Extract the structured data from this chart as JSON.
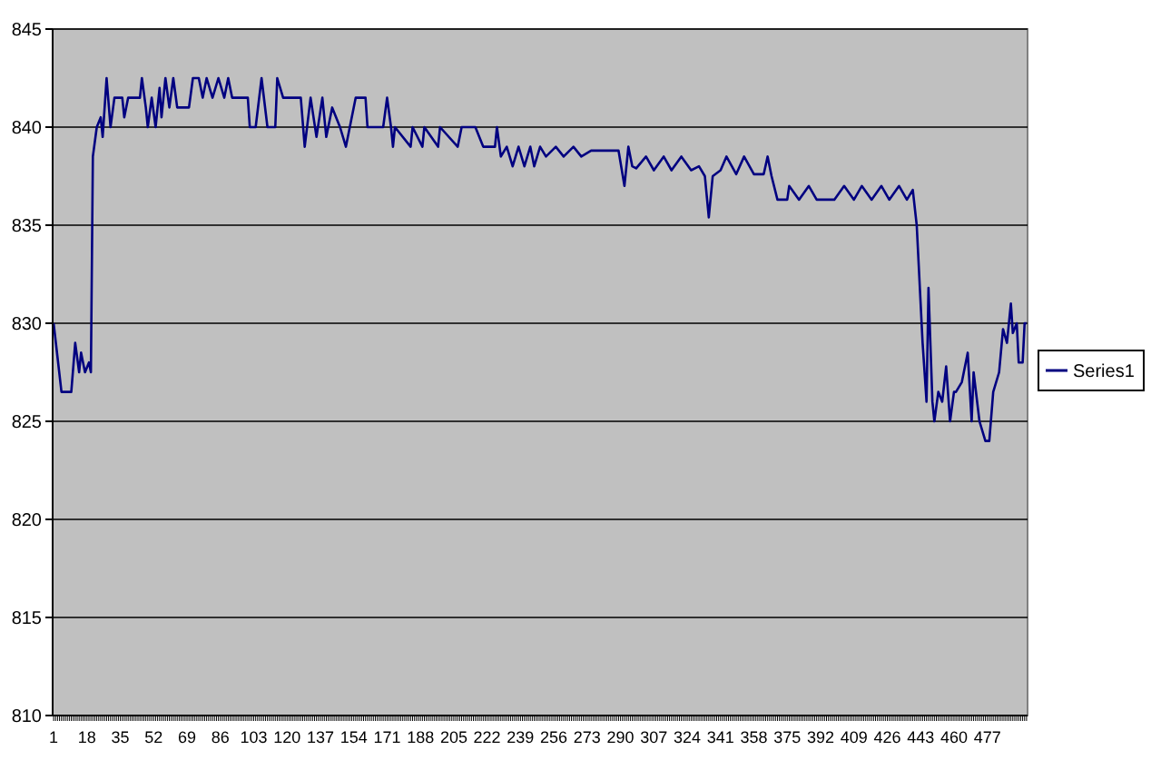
{
  "chart_data": {
    "type": "line",
    "xlim": [
      0.5,
      497.5
    ],
    "xticks": [
      1,
      18,
      35,
      52,
      69,
      86,
      103,
      120,
      137,
      154,
      171,
      188,
      205,
      222,
      239,
      256,
      273,
      290,
      307,
      324,
      341,
      358,
      375,
      392,
      409,
      426,
      443,
      460,
      477
    ],
    "ylim": [
      810,
      845
    ],
    "yticks": [
      810,
      815,
      820,
      825,
      830,
      835,
      840,
      845
    ],
    "grid": "y",
    "legend": "right",
    "marker": "none",
    "series": [
      {
        "name": "Series1",
        "color": "#000080",
        "x": [
          1,
          5,
          10,
          12,
          14,
          15,
          17,
          19,
          20,
          21,
          23,
          25,
          26,
          28,
          30,
          32,
          36,
          37,
          39,
          45,
          46,
          48,
          49,
          51,
          53,
          55,
          56,
          58,
          60,
          62,
          64,
          67,
          70,
          72,
          75,
          77,
          79,
          82,
          85,
          88,
          90,
          92,
          100,
          101,
          104,
          107,
          110,
          114,
          115,
          118,
          127,
          129,
          132,
          135,
          138,
          140,
          143,
          147,
          150,
          155,
          160,
          161,
          169,
          171,
          173,
          174,
          175,
          183,
          184,
          189,
          190,
          197,
          198,
          207,
          209,
          216,
          220,
          226,
          227,
          229,
          232,
          235,
          238,
          241,
          244,
          246,
          249,
          252,
          257,
          261,
          266,
          270,
          275,
          280,
          289,
          292,
          294,
          296,
          298,
          303,
          307,
          312,
          316,
          321,
          326,
          330,
          333,
          335,
          337,
          341,
          344,
          349,
          353,
          358,
          363,
          365,
          367,
          370,
          375,
          376,
          381,
          386,
          390,
          399,
          404,
          409,
          413,
          418,
          423,
          427,
          432,
          436,
          439,
          441,
          444,
          446,
          447,
          449,
          450,
          452,
          454,
          456,
          458,
          460,
          461,
          464,
          467,
          469,
          470,
          473,
          476,
          478,
          480,
          483,
          485,
          487,
          489,
          490,
          492,
          493,
          495,
          496,
          497
        ],
        "values": [
          830,
          826.5,
          826.5,
          829,
          827.5,
          828.5,
          827.5,
          828,
          827.5,
          838.5,
          840,
          840.5,
          839.5,
          842.5,
          840,
          841.5,
          841.5,
          840.5,
          841.5,
          841.5,
          842.5,
          841,
          840,
          841.5,
          840,
          842,
          840.5,
          842.5,
          841,
          842.5,
          841,
          841,
          841,
          842.5,
          842.5,
          841.5,
          842.5,
          841.5,
          842.5,
          841.5,
          842.5,
          841.5,
          841.5,
          840,
          840,
          842.5,
          840,
          840,
          842.5,
          841.5,
          841.5,
          839,
          841.5,
          839.5,
          841.5,
          839.5,
          841,
          840,
          839,
          841.5,
          841.5,
          840,
          840,
          841.5,
          840,
          839,
          840,
          839,
          840,
          839,
          840,
          839,
          840,
          839,
          840,
          840,
          839,
          839,
          840,
          838.5,
          839,
          838,
          839,
          838,
          839,
          838,
          839,
          838.5,
          839,
          838.5,
          839,
          838.5,
          838.8,
          838.8,
          838.8,
          837,
          839,
          838,
          837.9,
          838.5,
          837.8,
          838.5,
          837.8,
          838.5,
          837.8,
          838,
          837.5,
          835.4,
          837.5,
          837.8,
          838.5,
          837.6,
          838.5,
          837.6,
          837.6,
          838.5,
          837.5,
          836.3,
          836.3,
          837,
          836.3,
          837,
          836.3,
          836.3,
          837,
          836.3,
          837,
          836.3,
          837,
          836.3,
          837,
          836.3,
          836.8,
          835,
          829,
          826,
          831.8,
          826,
          825,
          826.5,
          826,
          827.8,
          825,
          826.5,
          826.5,
          827,
          828.5,
          825,
          827.5,
          825,
          824,
          824,
          826.5,
          827.5,
          829.7,
          829,
          831,
          829.5,
          830,
          828,
          828,
          830,
          830
        ]
      }
    ]
  }
}
